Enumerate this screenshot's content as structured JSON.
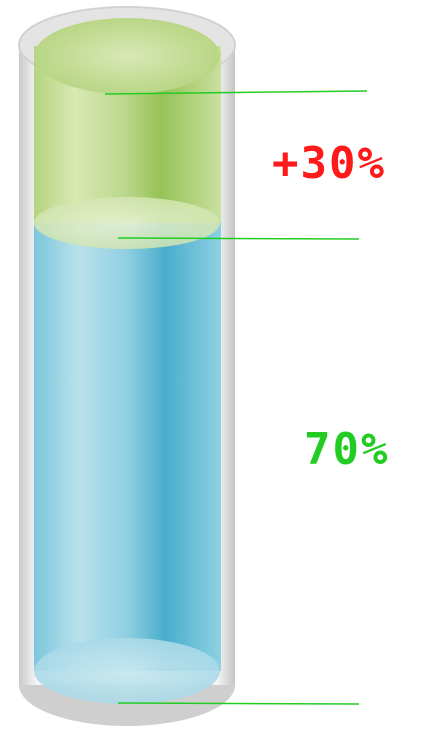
{
  "colors": {
    "upper_segment": "#a9cb6e",
    "lower_segment": "#5db8d2",
    "marker_line": "#22cc22",
    "increase_label": "#ff1a1a",
    "base_label": "#22cc22",
    "glass": "#d9d9d9"
  },
  "segments": [
    {
      "id": "increase",
      "label": "+30%",
      "value": 30
    },
    {
      "id": "base",
      "label": "70%",
      "value": 70
    }
  ]
}
